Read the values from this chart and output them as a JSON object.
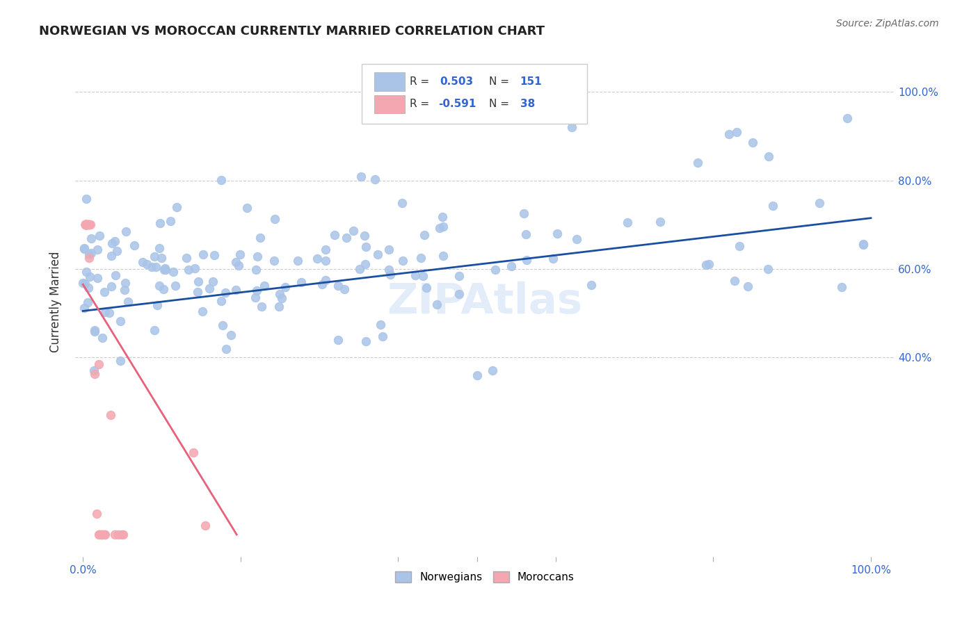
{
  "title": "NORWEGIAN VS MOROCCAN CURRENTLY MARRIED CORRELATION CHART",
  "source": "Source: ZipAtlas.com",
  "ylabel": "Currently Married",
  "legend_norwegian": "Norwegians",
  "legend_moroccan": "Moroccans",
  "r_norwegian": 0.503,
  "n_norwegian": 151,
  "r_moroccan": -0.591,
  "n_moroccan": 38,
  "norwegian_color": "#aac4e8",
  "moroccan_color": "#f4a7b0",
  "norwegian_line_color": "#1a4fa0",
  "moroccan_line_color": "#e8607a",
  "background_color": "#ffffff",
  "grid_color": "#cccccc",
  "nor_trend_y0": 0.505,
  "nor_trend_y1": 0.715,
  "mor_trend_x0": 0.0,
  "mor_trend_y0": 0.565,
  "mor_trend_x1": 0.195,
  "mor_trend_y1": 0.0,
  "xlim": [
    -0.01,
    1.03
  ],
  "ylim": [
    -0.05,
    1.1
  ],
  "ytick_values": [
    0.4,
    0.6,
    0.8,
    1.0
  ],
  "ytick_labels": [
    "40.0%",
    "60.0%",
    "80.0%",
    "100.0%"
  ],
  "watermark": "ZIPAtlas"
}
